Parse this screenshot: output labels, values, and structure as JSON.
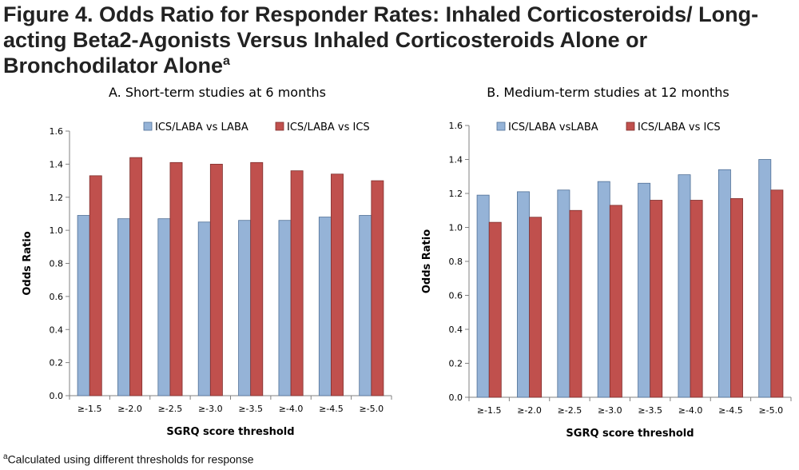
{
  "figure": {
    "title": "Figure 4. Odds Ratio for Responder Rates: Inhaled Corticosteroids/ Long-acting Beta2-Agonists Versus Inhaled Corticosteroids Alone or Bronchodilator Alone",
    "title_sup": "a",
    "footnote_sup": "a",
    "footnote": "Calculated using different thresholds for response"
  },
  "colors": {
    "blue": "#95b3d7",
    "red": "#c0504d",
    "blue_stroke": "#4f6f96",
    "red_stroke": "#7f2f2d"
  },
  "chart_data": [
    {
      "type": "bar",
      "title": "A. Short-term studies at 6 months",
      "xlabel": "SGRQ score threshold",
      "ylabel": "Odds Ratio",
      "ylim": [
        0,
        1.6
      ],
      "yticks": [
        "0.0",
        "0.2",
        "0.4",
        "0.6",
        "0.8",
        "1.0",
        "1.2",
        "1.4",
        "1.6"
      ],
      "categories": [
        "≥-1.5",
        "≥-2.0",
        "≥-2.5",
        "≥-3.0",
        "≥-3.5",
        "≥-4.0",
        "≥-4.5",
        "≥-5.0"
      ],
      "legend_position": "top-right",
      "grid": false,
      "series": [
        {
          "name": "ICS/LABA vs LABA",
          "color": "blue",
          "values": [
            1.09,
            1.07,
            1.07,
            1.05,
            1.06,
            1.06,
            1.08,
            1.09
          ]
        },
        {
          "name": "ICS/LABA vs ICS",
          "color": "red",
          "values": [
            1.33,
            1.44,
            1.41,
            1.4,
            1.41,
            1.36,
            1.34,
            1.3
          ]
        }
      ]
    },
    {
      "type": "bar",
      "title": "B. Medium-term studies at 12 months",
      "xlabel": "SGRQ score threshold",
      "ylabel": "Odds Ratio",
      "ylim": [
        0,
        1.6
      ],
      "yticks": [
        "0.0",
        "0.2",
        "0.4",
        "0.6",
        "0.8",
        "1.0",
        "1.2",
        "1.4",
        "1.6"
      ],
      "categories": [
        "≥-1.5",
        "≥-2.0",
        "≥-2.5",
        "≥-3.0",
        "≥-3.5",
        "≥-4.0",
        "≥-4.5",
        "≥-5.0"
      ],
      "legend_position": "top",
      "grid": false,
      "series": [
        {
          "name": "ICS/LABA vsLABA",
          "color": "blue",
          "values": [
            1.19,
            1.21,
            1.22,
            1.27,
            1.26,
            1.31,
            1.34,
            1.4
          ]
        },
        {
          "name": "ICS/LABA vs ICS",
          "color": "red",
          "values": [
            1.03,
            1.06,
            1.1,
            1.13,
            1.16,
            1.16,
            1.17,
            1.22
          ]
        }
      ]
    }
  ]
}
